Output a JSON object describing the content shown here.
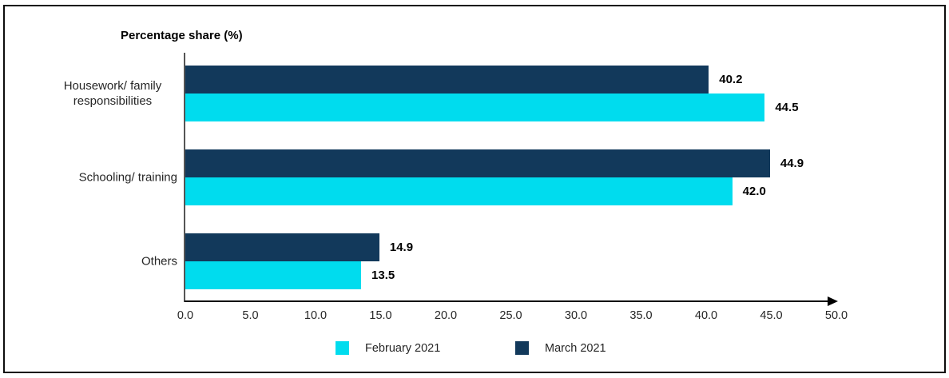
{
  "chart_data": {
    "type": "bar",
    "orientation": "horizontal",
    "title": "Percentage share (%)",
    "categories": [
      "Housework/ family responsibilities",
      "Schooling/ training",
      "Others"
    ],
    "series": [
      {
        "name": "February 2021",
        "color": "#00dcee",
        "values": [
          44.5,
          42.0,
          13.5
        ]
      },
      {
        "name": "March 2021",
        "color": "#12395b",
        "values": [
          40.2,
          44.9,
          14.9
        ]
      }
    ],
    "bar_order_top_to_bottom": [
      "March 2021",
      "February 2021"
    ],
    "value_label_format": "one-decimal",
    "xlabel": "",
    "ylabel": "",
    "xlim": [
      0,
      50
    ],
    "x_tick_step": 5,
    "x_tick_labels": [
      "0.0",
      "5.0",
      "10.0",
      "15.0",
      "20.0",
      "25.0",
      "30.0",
      "35.0",
      "40.0",
      "45.0",
      "50.0"
    ],
    "grid": false,
    "legend_position": "bottom",
    "axis_arrow": "right"
  },
  "legend": {
    "items": [
      {
        "label": "February 2021",
        "color": "#00dcee"
      },
      {
        "label": "March 2021",
        "color": "#12395b"
      }
    ]
  },
  "frame": {
    "background": "#ffffff",
    "border_color": "#0d0d0d"
  }
}
